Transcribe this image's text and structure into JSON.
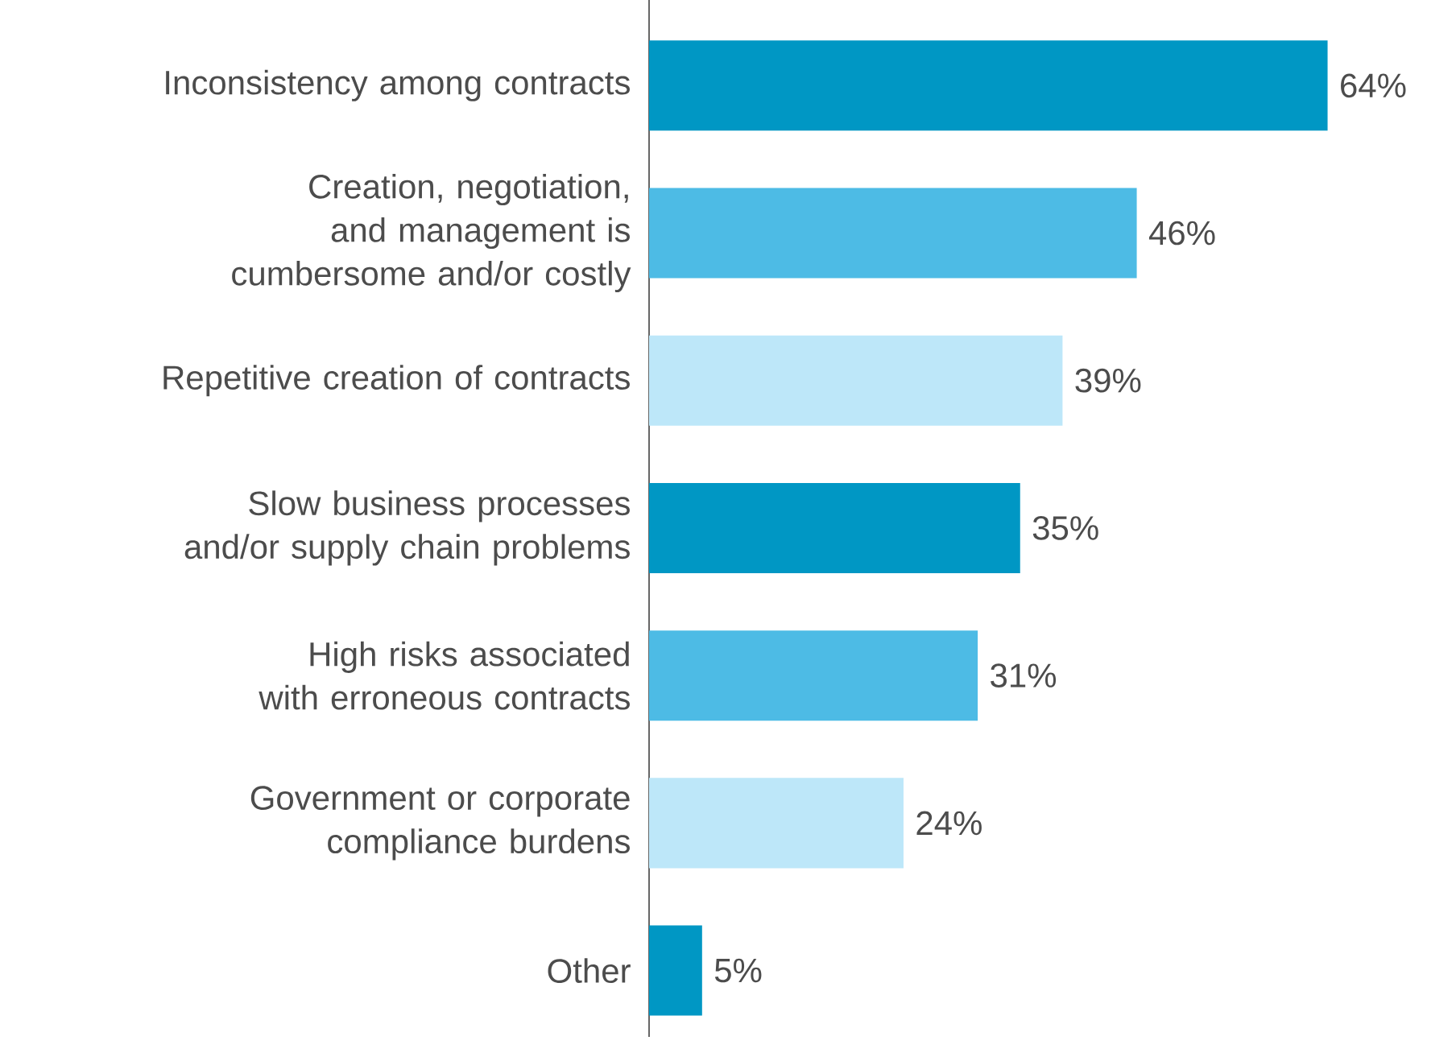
{
  "chart_data": {
    "type": "bar",
    "orientation": "horizontal",
    "categories": [
      "Inconsistency among contracts",
      "Creation, negotiation, and management is cumbersome and/or costly",
      "Repetitive creation of contracts",
      "Slow business processes and/or supply chain problems",
      "High risks associated with erroneous contracts",
      "Government or corporate compliance burdens",
      "Other"
    ],
    "values": [
      64,
      46,
      39,
      35,
      31,
      24,
      5
    ],
    "value_labels": [
      "64%",
      "46%",
      "39%",
      "35%",
      "31%",
      "24%",
      "5%"
    ],
    "colors": [
      "#0097c4",
      "#4dbbe5",
      "#bde7f9",
      "#0097c4",
      "#4dbbe5",
      "#bde7f9",
      "#0097c4"
    ]
  }
}
